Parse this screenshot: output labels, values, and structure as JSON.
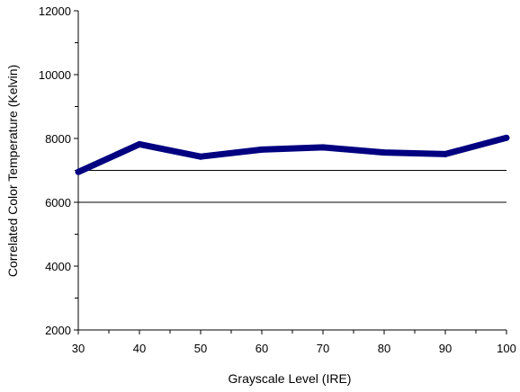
{
  "chart_data": {
    "type": "line",
    "title": "",
    "xlabel": "Grayscale Level (IRE)",
    "ylabel": "Correlated Color Temperature (Kelvin)",
    "x": [
      30,
      40,
      50,
      60,
      70,
      80,
      90,
      100
    ],
    "series": [
      {
        "name": "",
        "values": [
          6950,
          7820,
          7430,
          7650,
          7720,
          7560,
          7510,
          8020
        ],
        "color": "#000080"
      }
    ],
    "reference_lines": [
      7000,
      6000
    ],
    "xlim": [
      30,
      100
    ],
    "ylim": [
      2000,
      12000
    ],
    "xticks": [
      30,
      40,
      50,
      60,
      70,
      80,
      90,
      100
    ],
    "yticks": [
      2000,
      4000,
      6000,
      8000,
      10000,
      12000
    ],
    "grid": false,
    "legend": "none"
  }
}
